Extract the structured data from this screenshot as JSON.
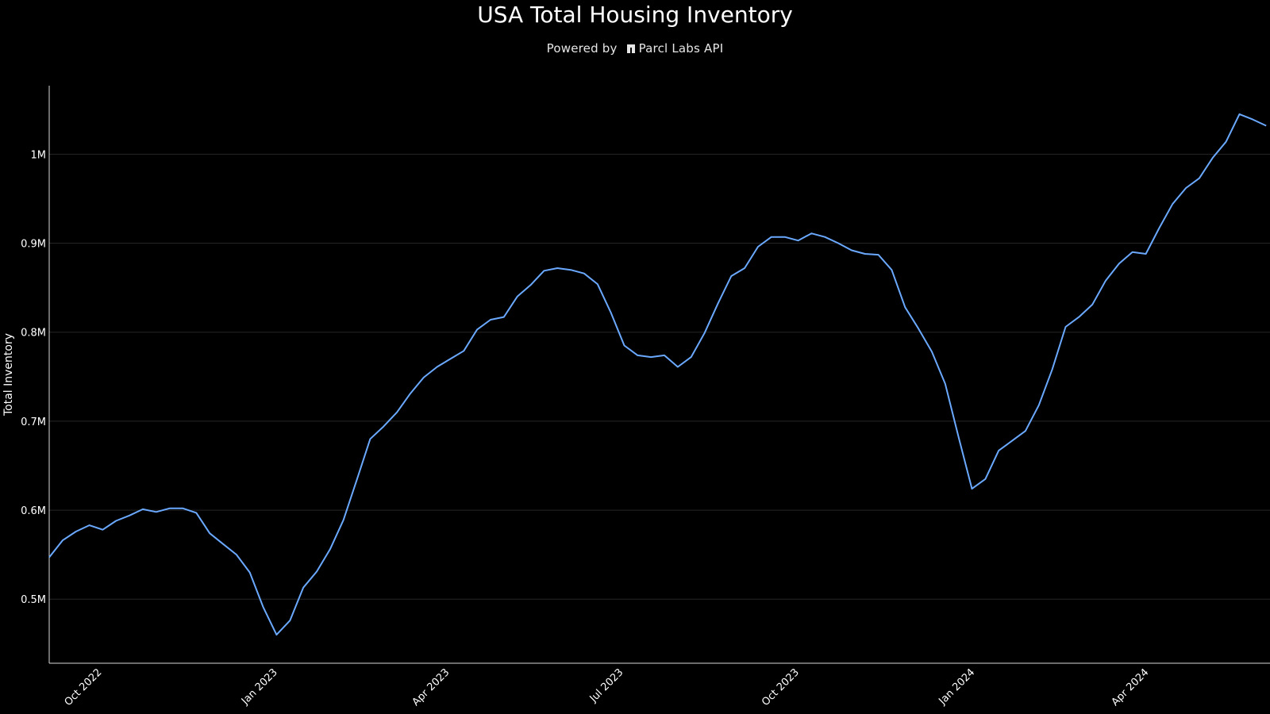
{
  "header": {
    "title": "USA Total Housing Inventory",
    "subtitle_prefix": "Powered by",
    "subtitle_brand": "Parcl Labs API"
  },
  "chart_data": {
    "type": "line",
    "title": "USA Total Housing Inventory",
    "xlabel": "",
    "ylabel": "Total Inventory",
    "y_tick_labels": [
      "0.5M",
      "0.6M",
      "0.7M",
      "0.8M",
      "0.9M",
      "1M"
    ],
    "y_ticks": [
      500000,
      600000,
      700000,
      800000,
      900000,
      1000000
    ],
    "ylim": [
      428000,
      1077000
    ],
    "x_tick_labels": [
      "Oct 2022",
      "Jan 2023",
      "Apr 2023",
      "Jul 2023",
      "Oct 2023",
      "Jan 2024",
      "Apr 2024"
    ],
    "x_ticks": [
      "2022-10-01",
      "2023-01-01",
      "2023-04-01",
      "2023-07-01",
      "2023-10-01",
      "2024-01-01",
      "2024-04-01"
    ],
    "xlim": [
      "2022-09-05",
      "2024-06-05"
    ],
    "grid": true,
    "line_color": "#6aa9ff",
    "series": [
      {
        "x": [
          "2022-09-05",
          "2022-09-12",
          "2022-09-19",
          "2022-09-26",
          "2022-10-03",
          "2022-10-10",
          "2022-10-17",
          "2022-10-24",
          "2022-10-31",
          "2022-11-07",
          "2022-11-14",
          "2022-11-21",
          "2022-11-28",
          "2022-12-05",
          "2022-12-12",
          "2022-12-19",
          "2022-12-26",
          "2023-01-02",
          "2023-01-09",
          "2023-01-16",
          "2023-01-23",
          "2023-01-30",
          "2023-02-06",
          "2023-02-13",
          "2023-02-20",
          "2023-02-27",
          "2023-03-06",
          "2023-03-13",
          "2023-03-20",
          "2023-03-27",
          "2023-04-03",
          "2023-04-10",
          "2023-04-17",
          "2023-04-24",
          "2023-05-01",
          "2023-05-08",
          "2023-05-15",
          "2023-05-22",
          "2023-05-29",
          "2023-06-05",
          "2023-06-12",
          "2023-06-19",
          "2023-06-26",
          "2023-07-03",
          "2023-07-10",
          "2023-07-17",
          "2023-07-24",
          "2023-07-31",
          "2023-08-07",
          "2023-08-14",
          "2023-08-21",
          "2023-08-28",
          "2023-09-04",
          "2023-09-11",
          "2023-09-18",
          "2023-09-25",
          "2023-10-02",
          "2023-10-09",
          "2023-10-16",
          "2023-10-23",
          "2023-10-30",
          "2023-11-06",
          "2023-11-13",
          "2023-11-20",
          "2023-11-27",
          "2023-12-04",
          "2023-12-11",
          "2023-12-18",
          "2023-12-25",
          "2024-01-01",
          "2024-01-08",
          "2024-01-15",
          "2024-01-22",
          "2024-01-29",
          "2024-02-05",
          "2024-02-12",
          "2024-02-19",
          "2024-02-26",
          "2024-03-04",
          "2024-03-11",
          "2024-03-18",
          "2024-03-25",
          "2024-04-01",
          "2024-04-08",
          "2024-04-15",
          "2024-04-22",
          "2024-04-29",
          "2024-05-06",
          "2024-05-13",
          "2024-05-20",
          "2024-05-27",
          "2024-06-03"
        ],
        "values": [
          547000,
          566000,
          576000,
          583000,
          578000,
          588000,
          594000,
          601000,
          598000,
          602000,
          602000,
          597000,
          574000,
          562000,
          550000,
          530000,
          491000,
          460000,
          476000,
          513000,
          531000,
          556000,
          589000,
          634000,
          680000,
          694000,
          710000,
          731000,
          749000,
          761000,
          770000,
          779000,
          803000,
          814000,
          817000,
          840000,
          853000,
          869000,
          872000,
          870000,
          866000,
          854000,
          822000,
          785000,
          774000,
          772000,
          774000,
          761000,
          772000,
          799000,
          832000,
          863000,
          872000,
          896000,
          907000,
          907000,
          903000,
          911000,
          907000,
          900000,
          892000,
          888000,
          887000,
          870000,
          828000,
          804000,
          778000,
          742000,
          682000,
          624000,
          635000,
          667000,
          678000,
          689000,
          718000,
          758000,
          806000,
          817000,
          831000,
          858000,
          877000,
          890000,
          888000,
          917000,
          944000,
          962000,
          973000,
          996000,
          1014000,
          1045000,
          1039000,
          1032000
        ]
      }
    ]
  }
}
